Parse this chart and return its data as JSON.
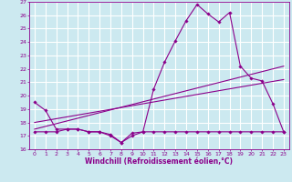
{
  "xlabel": "Windchill (Refroidissement éolien,°C)",
  "background_color": "#cce9f0",
  "line_color": "#8b008b",
  "grid_color": "#ffffff",
  "xlim": [
    -0.5,
    23.5
  ],
  "ylim": [
    16,
    27
  ],
  "yticks": [
    16,
    17,
    18,
    19,
    20,
    21,
    22,
    23,
    24,
    25,
    26,
    27
  ],
  "xticks": [
    0,
    1,
    2,
    3,
    4,
    5,
    6,
    7,
    8,
    9,
    10,
    11,
    12,
    13,
    14,
    15,
    16,
    17,
    18,
    19,
    20,
    21,
    22,
    23
  ],
  "series": [
    {
      "x": [
        0,
        1,
        2,
        3,
        4,
        5,
        6,
        7,
        8,
        9,
        10,
        11,
        12,
        13,
        14,
        15,
        16,
        17,
        18,
        19,
        20,
        21,
        22,
        23
      ],
      "y": [
        19.5,
        18.9,
        17.5,
        17.5,
        17.5,
        17.3,
        17.3,
        17.1,
        16.5,
        17.0,
        17.3,
        20.5,
        22.5,
        24.1,
        25.6,
        26.8,
        26.1,
        25.5,
        26.2,
        22.2,
        21.3,
        21.1,
        19.4,
        17.3
      ],
      "marker": true
    },
    {
      "x": [
        0,
        1,
        2,
        3,
        4,
        5,
        6,
        7,
        8,
        9,
        10,
        11,
        12,
        13,
        14,
        15,
        16,
        17,
        18,
        19,
        20,
        21,
        22,
        23
      ],
      "y": [
        17.3,
        17.3,
        17.3,
        17.5,
        17.5,
        17.3,
        17.3,
        17.0,
        16.5,
        17.2,
        17.3,
        17.3,
        17.3,
        17.3,
        17.3,
        17.3,
        17.3,
        17.3,
        17.3,
        17.3,
        17.3,
        17.3,
        17.3,
        17.3
      ],
      "marker": true
    },
    {
      "x": [
        0,
        23
      ],
      "y": [
        17.5,
        22.2
      ],
      "marker": false
    },
    {
      "x": [
        0,
        23
      ],
      "y": [
        18.0,
        21.2
      ],
      "marker": false
    }
  ]
}
